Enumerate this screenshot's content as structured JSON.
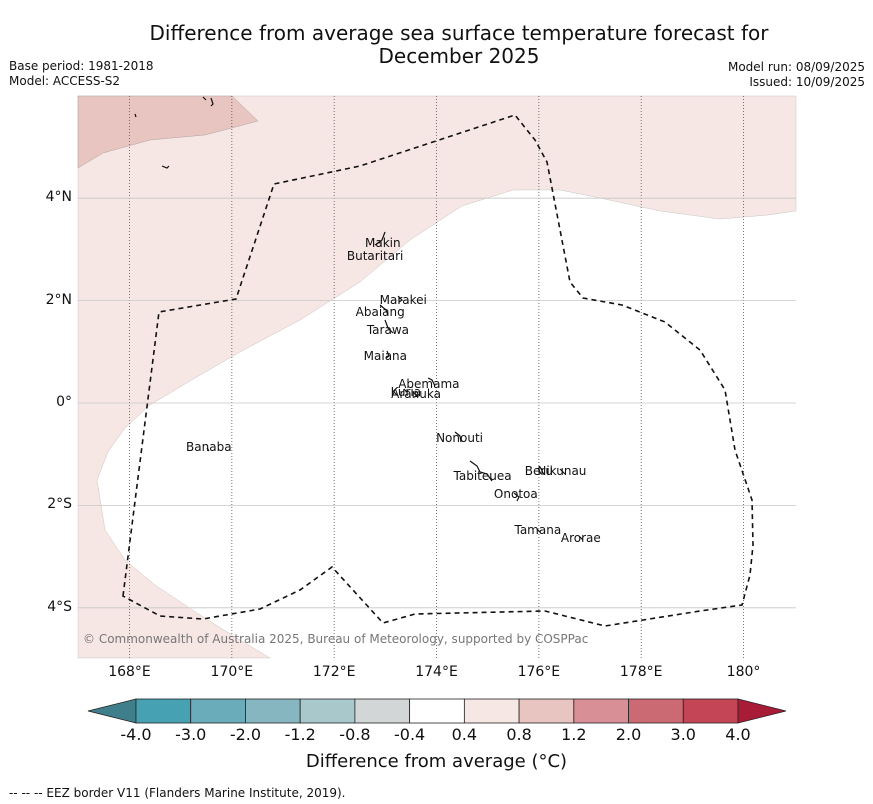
{
  "title": [
    "Difference from average sea surface temperature forecast for",
    "December 2025"
  ],
  "base_period": "Base period: 1981-2018",
  "model": "Model: ACCESS-S2",
  "model_run": "Model run: 08/09/2025",
  "issued": "Issued: 10/09/2025",
  "copyright": "© Commonwealth of Australia 2025, Bureau of Meteorology, supported by COSPPac",
  "footnote": "-- -- -- EEZ border V11 (Flanders Marine Institute, 2019).",
  "x_axis": {
    "ticks": [
      168,
      170,
      172,
      174,
      176,
      178,
      180
    ],
    "labels": [
      "168°E",
      "170°E",
      "172°E",
      "174°E",
      "176°E",
      "178°E",
      "180°"
    ]
  },
  "y_axis": {
    "ticks": [
      4,
      2,
      0,
      -2,
      -4
    ],
    "labels": [
      "4°N",
      "2°N",
      "0°",
      "2°S",
      "4°S"
    ]
  },
  "colorbar": {
    "title": "Difference from average (°C)",
    "tick_labels": [
      "-4.0",
      "-3.0",
      "-2.0",
      "-1.2",
      "-0.8",
      "-0.4",
      "0.4",
      "0.8",
      "1.2",
      "2.0",
      "3.0",
      "4.0"
    ],
    "colors": [
      "#3f7f8c",
      "#46a1b2",
      "#6aacba",
      "#86b7c1",
      "#a9c8cc",
      "#d3d6d7",
      "#ffffff",
      "#f6e6e4",
      "#e8c5c1",
      "#d88f95",
      "#cc6a74",
      "#c44555",
      "#a81c38"
    ]
  },
  "places": [
    {
      "name": "Makin",
      "lon": 172.95,
      "lat": 3.1
    },
    {
      "name": "Butaritari",
      "lon": 172.8,
      "lat": 2.85
    },
    {
      "name": "Marakei",
      "lon": 173.35,
      "lat": 2.0
    },
    {
      "name": "Abaiang",
      "lon": 172.9,
      "lat": 1.75
    },
    {
      "name": "Tarawa",
      "lon": 173.05,
      "lat": 1.4
    },
    {
      "name": "Maiana",
      "lon": 173.0,
      "lat": 0.9
    },
    {
      "name": "Abemama",
      "lon": 173.85,
      "lat": 0.35
    },
    {
      "name": "Kuria",
      "lon": 173.4,
      "lat": 0.2
    },
    {
      "name": "Aranuka",
      "lon": 173.6,
      "lat": 0.15
    },
    {
      "name": "Nonouti",
      "lon": 174.45,
      "lat": -0.7
    },
    {
      "name": "Banaba",
      "lon": 169.55,
      "lat": -0.87
    },
    {
      "name": "Beru",
      "lon": 176.0,
      "lat": -1.35
    },
    {
      "name": "Tabiteuea",
      "lon": 174.9,
      "lat": -1.45
    },
    {
      "name": "Nikunau",
      "lon": 176.45,
      "lat": -1.35
    },
    {
      "name": "Onotoa",
      "lon": 175.55,
      "lat": -1.8
    },
    {
      "name": "Tamana",
      "lon": 175.98,
      "lat": -2.5
    },
    {
      "name": "Arorae",
      "lon": 176.82,
      "lat": -2.65
    }
  ]
}
